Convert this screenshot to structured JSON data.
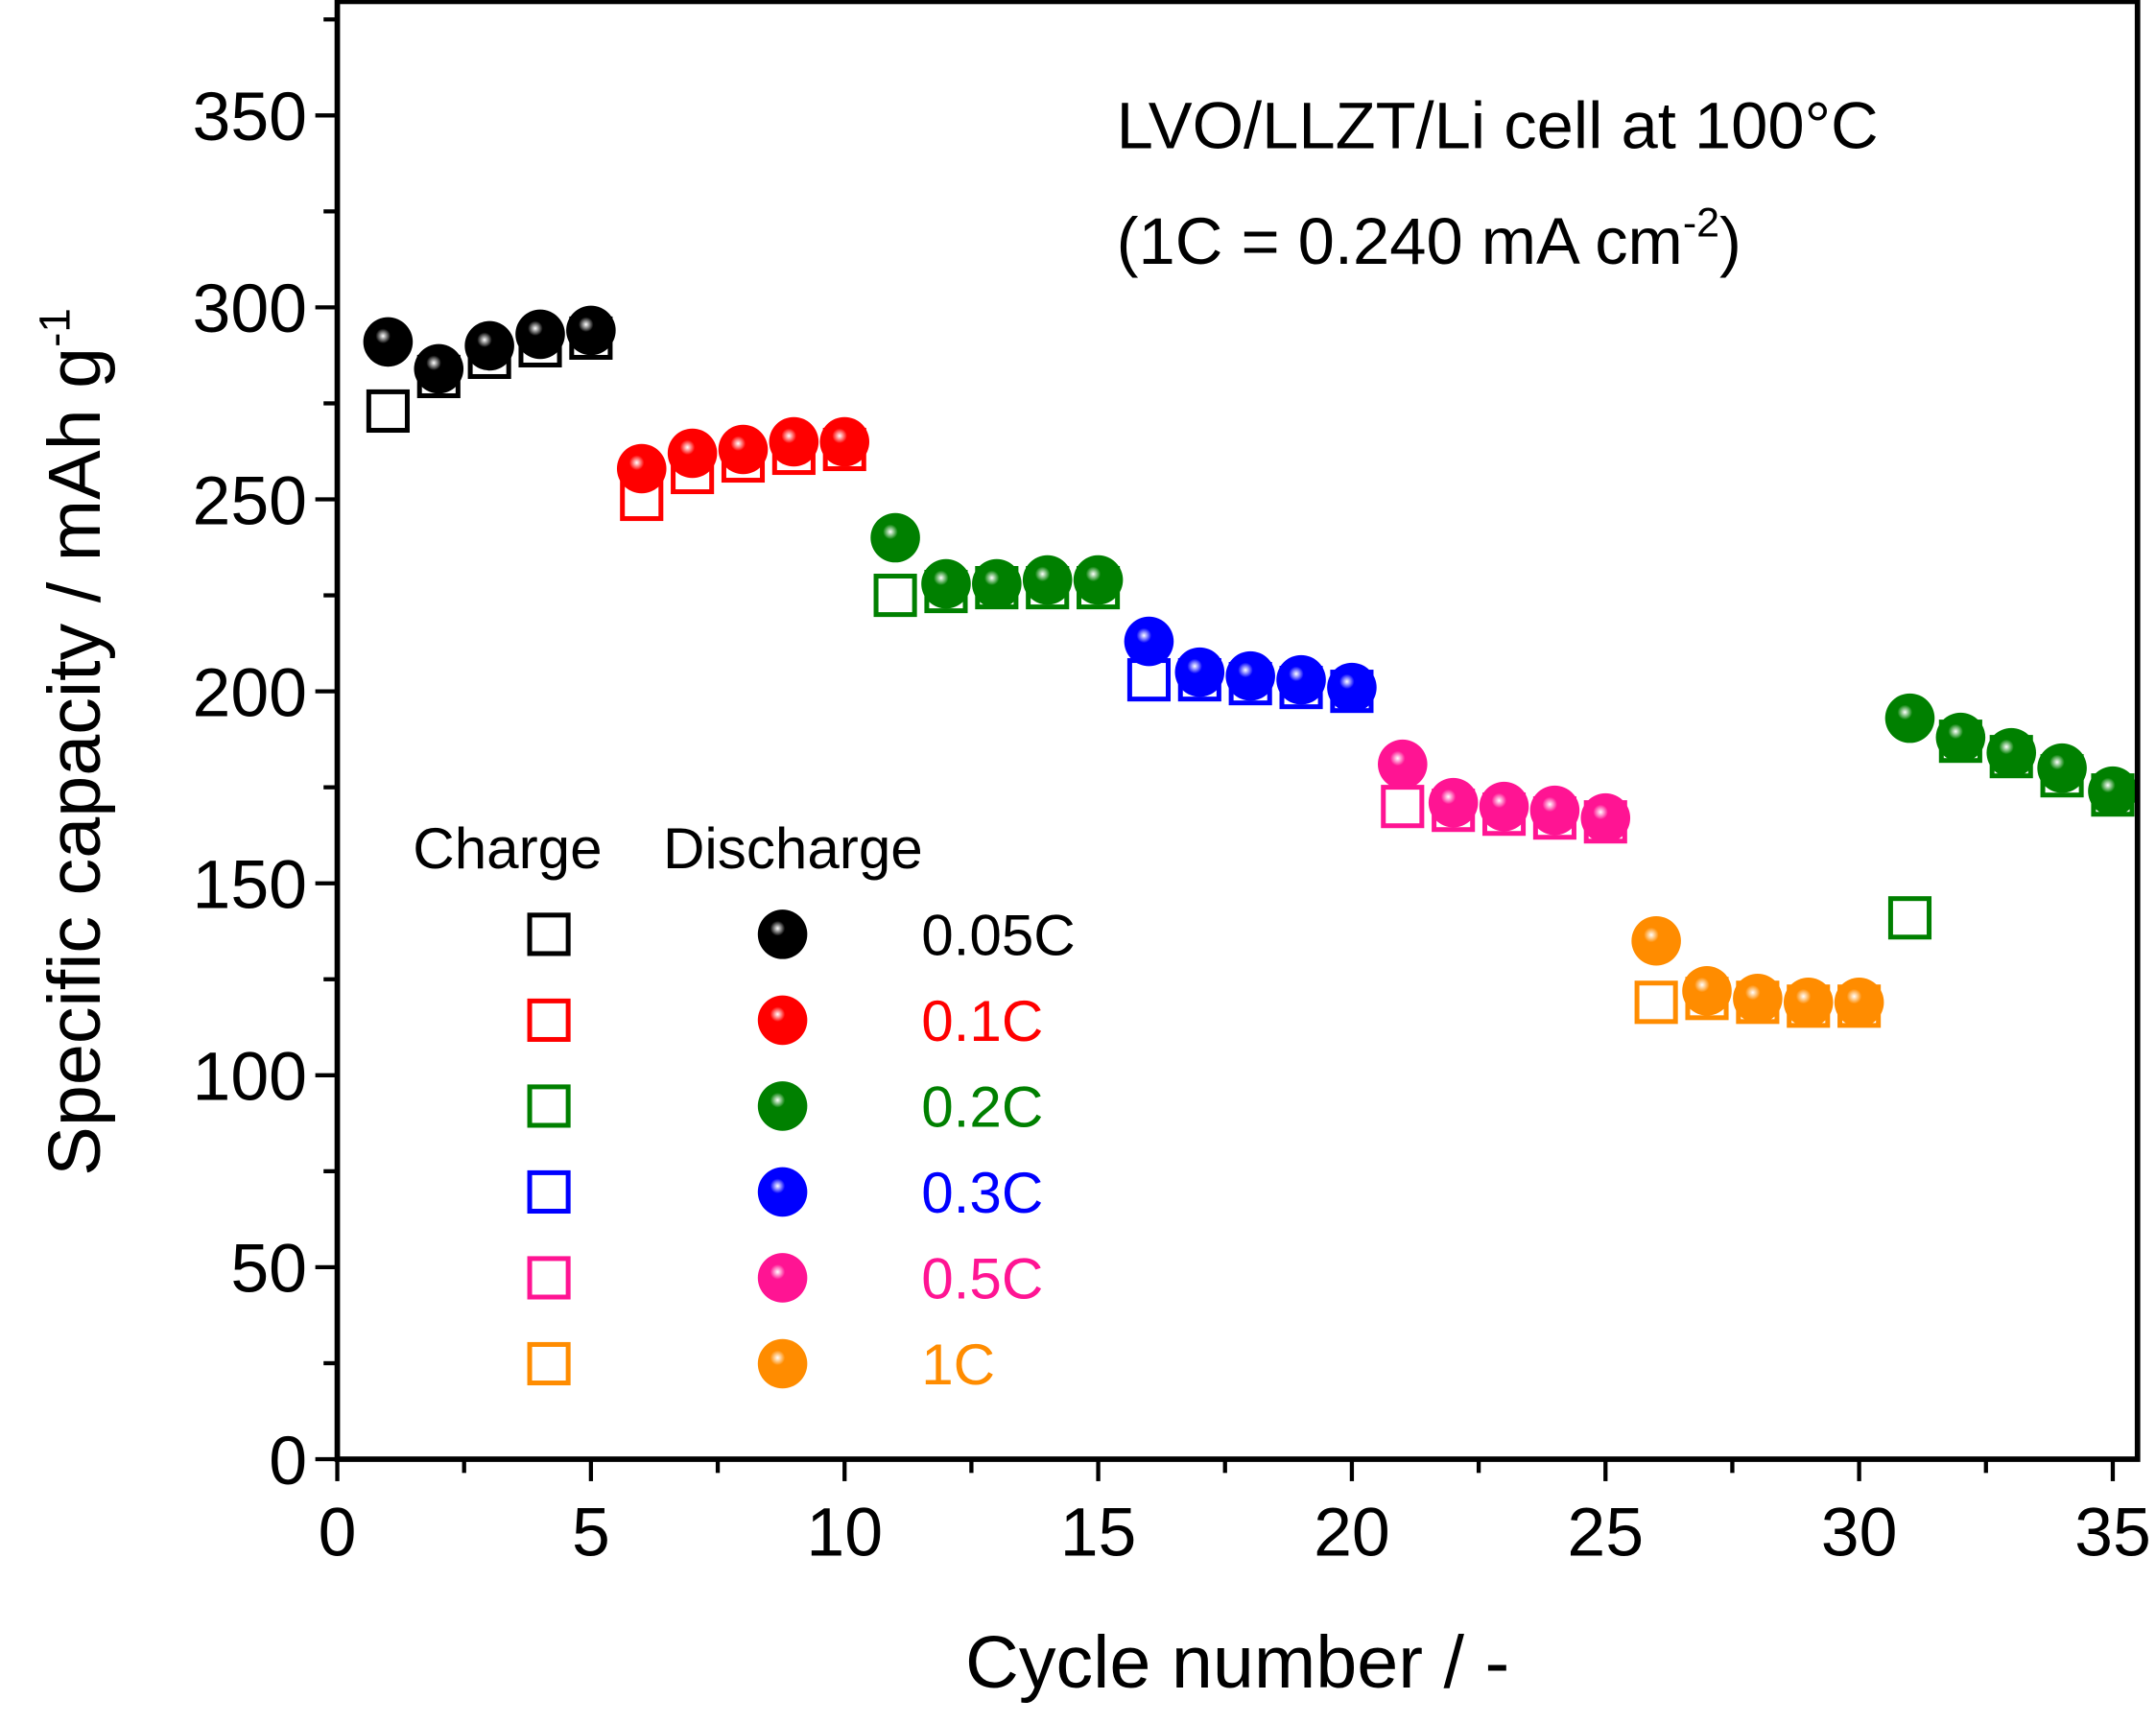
{
  "chart_data": {
    "type": "scatter",
    "title": "",
    "annotation_line1": "LVO/LLZT/Li cell at 100°C",
    "annotation_line2_main": "(1C = 0.240 mA cm",
    "annotation_line2_sup": "-2",
    "annotation_line2_end": ")",
    "xlabel": "Cycle number / -",
    "ylabel_main": "Specific capacity / mAh g",
    "ylabel_sup": "-1",
    "xlim": [
      0,
      35.5
    ],
    "ylim": [
      0,
      380
    ],
    "xticks": [
      0,
      5,
      10,
      15,
      20,
      25,
      30,
      35
    ],
    "yticks": [
      0,
      50,
      100,
      150,
      200,
      250,
      300,
      350
    ],
    "grid": false,
    "legend": {
      "placement": "center-left",
      "header_charge": "Charge",
      "header_discharge": "Discharge",
      "entries": [
        "0.05C",
        "0.1C",
        "0.2C",
        "0.3C",
        "0.5C",
        "1C"
      ]
    },
    "series": [
      {
        "name": "0.05C",
        "color": "#000000",
        "x": [
          1,
          2,
          3,
          4,
          5
        ],
        "charge": [
          273,
          282,
          287,
          290,
          292
        ],
        "discharge": [
          291,
          284,
          290,
          293,
          294
        ]
      },
      {
        "name": "0.1C",
        "color": "#ff0000",
        "x": [
          6,
          7,
          8,
          9,
          10
        ],
        "charge": [
          250,
          257,
          260,
          262,
          263
        ],
        "discharge": [
          258,
          262,
          263,
          265,
          265
        ]
      },
      {
        "name": "0.2C",
        "color": "#008000",
        "x": [
          11,
          12,
          13,
          14,
          15
        ],
        "charge": [
          225,
          226,
          227,
          227,
          227
        ],
        "discharge": [
          240,
          228,
          228,
          229,
          229
        ]
      },
      {
        "name": "0.3C",
        "color": "#0000ff",
        "x": [
          16,
          17,
          18,
          19,
          20
        ],
        "charge": [
          203,
          203,
          202,
          201,
          200
        ],
        "discharge": [
          213,
          205,
          204,
          203,
          201
        ]
      },
      {
        "name": "0.5C",
        "color": "#ff1493",
        "x": [
          21,
          22,
          23,
          24,
          25
        ],
        "charge": [
          170,
          169,
          168,
          167,
          166
        ],
        "discharge": [
          181,
          171,
          170,
          169,
          167
        ]
      },
      {
        "name": "1C",
        "color": "#ff8c00",
        "x": [
          26,
          27,
          28,
          29,
          30
        ],
        "charge": [
          119,
          120,
          119,
          118,
          118
        ],
        "discharge": [
          135,
          122,
          120,
          119,
          119
        ]
      },
      {
        "name": "0.2C (return)",
        "color": "#008000",
        "x": [
          31,
          32,
          33,
          34,
          35
        ],
        "charge": [
          141,
          187,
          183,
          178,
          173
        ],
        "discharge": [
          193,
          188,
          184,
          180,
          174
        ]
      }
    ]
  }
}
